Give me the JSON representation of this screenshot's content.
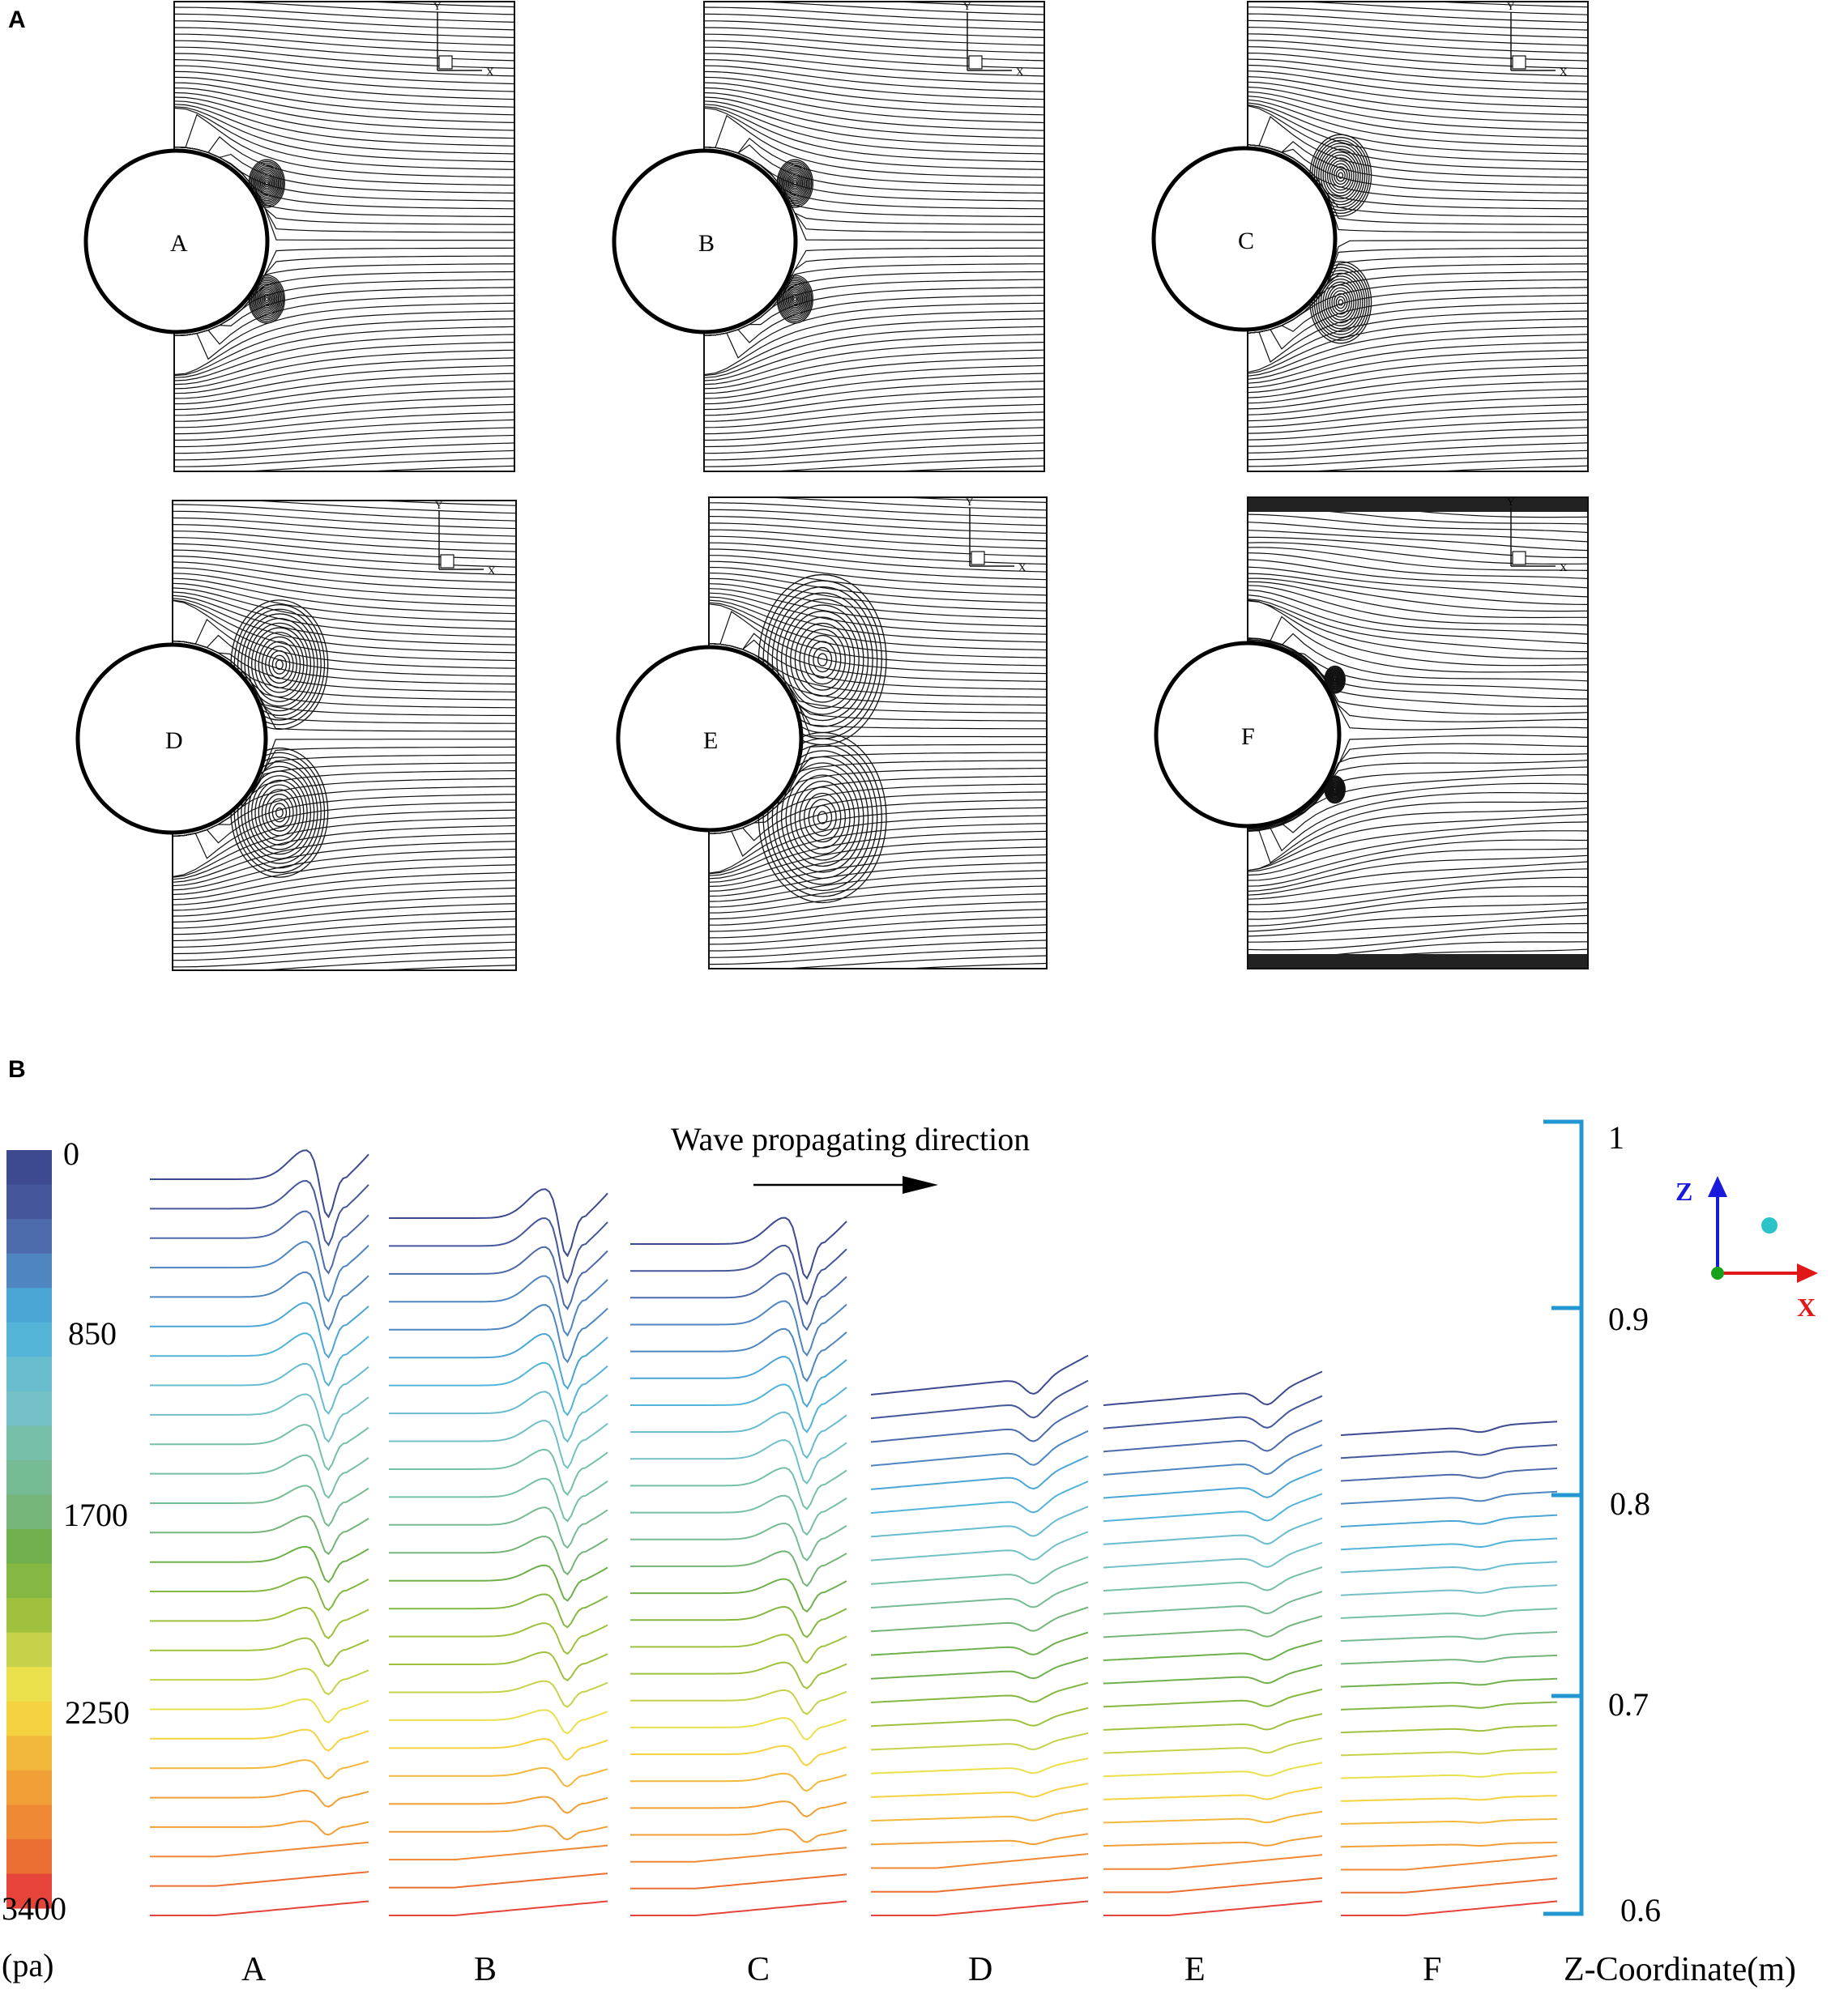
{
  "figure": {
    "panel_a_label": "A",
    "panel_b_label": "B"
  },
  "streamline_panels": [
    {
      "label": "A",
      "vortex": "small"
    },
    {
      "label": "B",
      "vortex": "small"
    },
    {
      "label": "C",
      "vortex": "medium"
    },
    {
      "label": "D",
      "vortex": "large"
    },
    {
      "label": "E",
      "vortex": "xlarge"
    },
    {
      "label": "F",
      "vortex": "shear"
    }
  ],
  "axis_indicator": {
    "x": "X",
    "y": "Y"
  },
  "colorbar": {
    "ticks": [
      "0",
      "850",
      "1700",
      "2250",
      "3400"
    ],
    "unit": "(pa)",
    "colors": [
      "#3d4a8f",
      "#45579a",
      "#4d6aaa",
      "#4f86c0",
      "#4ca6d5",
      "#53b4d8",
      "#68bcce",
      "#73c0c6",
      "#76bfa9",
      "#77bb94",
      "#76b57a",
      "#6fb04d",
      "#85b842",
      "#a0c13e",
      "#c5d24a",
      "#e9e04c",
      "#f5d23f",
      "#f2b83b",
      "#f0a037",
      "#ef8935",
      "#eb6e33",
      "#e6443a"
    ]
  },
  "annotation": {
    "text": "Wave propagating direction"
  },
  "profile_groups": [
    "A",
    "B",
    "C",
    "D",
    "E",
    "F"
  ],
  "z_scale": {
    "ticks": [
      "1",
      "0.9",
      "0.8",
      "0.7",
      "0.6"
    ],
    "label": "Z-Coordinate(m)"
  },
  "axes_triad": {
    "z": "Z",
    "x": "X"
  }
}
